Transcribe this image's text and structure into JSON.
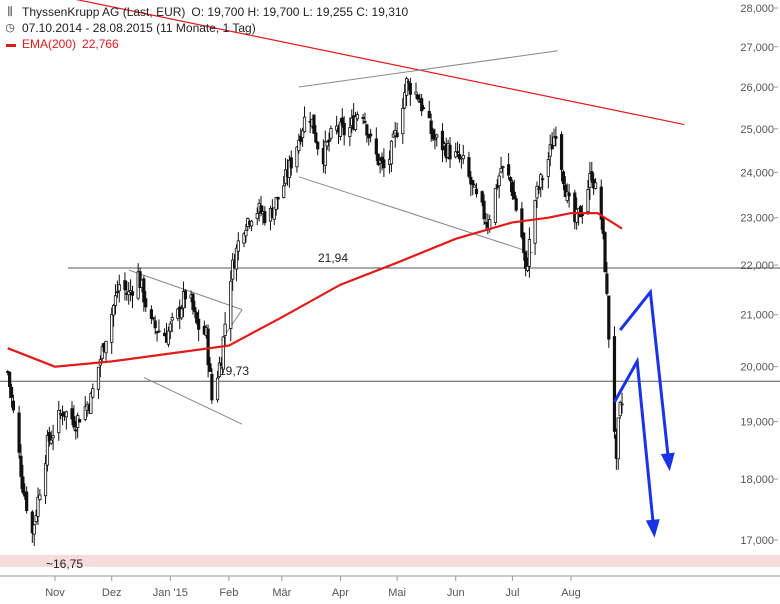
{
  "legend": {
    "title": "ThyssenKrupp AG (Last, EUR)",
    "ohlc": "O: 19,700  H: 19,700  L: 19,255  C: 19,310",
    "range": "07.10.2014 - 28.08.2015 (11 Monate, 1 Tag)",
    "ema_label": "EMA(200)",
    "ema_value": "22,766",
    "icon_chart": "candlestick-icon",
    "icon_clock": "clock-icon"
  },
  "colors": {
    "candle": "#111111",
    "ema": "#e31a1c",
    "trend_red": "#e31a1c",
    "wedge": "#888888",
    "level": "#555555",
    "arrow": "#1a33e6",
    "low_band": "#f7dcdc"
  },
  "chart_data": {
    "type": "candlestick",
    "title": "ThyssenKrupp AG (Last, EUR)",
    "xlabel": "",
    "ylabel": "",
    "ylim": [
      16.75,
      28.0
    ],
    "y_scale": "log",
    "y_ticks": [
      "17,000",
      "18,000",
      "19,000",
      "20,000",
      "21,000",
      "22,000",
      "23,000",
      "24,000",
      "25,000",
      "26,000",
      "27,000",
      "28,000"
    ],
    "y_tick_values": [
      17,
      18,
      19,
      20,
      21,
      22,
      23,
      24,
      25,
      26,
      27,
      28
    ],
    "x_labels": [
      "Nov",
      "Dez",
      "Jan '15",
      "Feb",
      "Mär",
      "Apr",
      "Mai",
      "Jun",
      "Jul",
      "Aug"
    ],
    "x_label_dates": [
      "2014-11-01",
      "2014-12-01",
      "2015-01-01",
      "2015-02-01",
      "2015-03-01",
      "2015-04-01",
      "2015-05-01",
      "2015-06-01",
      "2015-07-01",
      "2015-08-01"
    ],
    "x_range": [
      "2014-10-07",
      "2015-09-30"
    ],
    "price_path": [
      [
        "2014-10-07",
        19.9
      ],
      [
        "2014-10-15",
        17.9
      ],
      [
        "2014-10-20",
        17.1
      ],
      [
        "2014-10-28",
        18.6
      ],
      [
        "2014-11-05",
        19.2
      ],
      [
        "2014-11-12",
        19.0
      ],
      [
        "2014-11-20",
        19.4
      ],
      [
        "2014-11-28",
        20.6
      ],
      [
        "2014-12-05",
        21.6
      ],
      [
        "2014-12-10",
        21.4
      ],
      [
        "2014-12-15",
        21.8
      ],
      [
        "2014-12-22",
        20.8
      ],
      [
        "2014-12-30",
        20.6
      ],
      [
        "2015-01-05",
        21.0
      ],
      [
        "2015-01-10",
        21.5
      ],
      [
        "2015-01-15",
        20.8
      ],
      [
        "2015-01-20",
        20.6
      ],
      [
        "2015-01-23",
        19.4
      ],
      [
        "2015-01-28",
        20.2
      ],
      [
        "2015-02-02",
        21.8
      ],
      [
        "2015-02-08",
        22.8
      ],
      [
        "2015-02-15",
        23.2
      ],
      [
        "2015-02-22",
        23.0
      ],
      [
        "2015-03-01",
        23.6
      ],
      [
        "2015-03-08",
        24.5
      ],
      [
        "2015-03-15",
        25.5
      ],
      [
        "2015-03-22",
        24.3
      ],
      [
        "2015-03-29",
        25.0
      ],
      [
        "2015-04-05",
        24.9
      ],
      [
        "2015-04-12",
        25.6
      ],
      [
        "2015-04-18",
        24.5
      ],
      [
        "2015-04-25",
        24.0
      ],
      [
        "2015-05-01",
        25.0
      ],
      [
        "2015-05-06",
        26.1
      ],
      [
        "2015-05-12",
        25.8
      ],
      [
        "2015-05-20",
        24.8
      ],
      [
        "2015-05-28",
        24.5
      ],
      [
        "2015-06-05",
        24.2
      ],
      [
        "2015-06-12",
        23.4
      ],
      [
        "2015-06-18",
        22.9
      ],
      [
        "2015-06-25",
        24.1
      ],
      [
        "2015-06-30",
        23.8
      ],
      [
        "2015-07-06",
        22.6
      ],
      [
        "2015-07-08",
        21.8
      ],
      [
        "2015-07-13",
        23.4
      ],
      [
        "2015-07-20",
        24.3
      ],
      [
        "2015-07-24",
        25.0
      ],
      [
        "2015-07-30",
        23.4
      ],
      [
        "2015-08-03",
        22.9
      ],
      [
        "2015-08-07",
        23.2
      ],
      [
        "2015-08-12",
        24.0
      ],
      [
        "2015-08-17",
        23.0
      ],
      [
        "2015-08-19",
        22.0
      ],
      [
        "2015-08-21",
        20.6
      ],
      [
        "2015-08-24",
        18.9
      ],
      [
        "2015-08-25",
        18.2
      ],
      [
        "2015-08-26",
        18.9
      ],
      [
        "2015-08-27",
        19.2
      ],
      [
        "2015-08-28",
        19.31
      ]
    ],
    "ema200": [
      [
        "2014-10-07",
        20.35
      ],
      [
        "2014-11-01",
        20.0
      ],
      [
        "2014-12-01",
        20.1
      ],
      [
        "2015-01-01",
        20.25
      ],
      [
        "2015-02-01",
        20.4
      ],
      [
        "2015-03-01",
        20.95
      ],
      [
        "2015-04-01",
        21.6
      ],
      [
        "2015-05-01",
        22.05
      ],
      [
        "2015-06-01",
        22.55
      ],
      [
        "2015-07-01",
        22.9
      ],
      [
        "2015-07-20",
        23.0
      ],
      [
        "2015-08-01",
        23.1
      ],
      [
        "2015-08-15",
        23.1
      ],
      [
        "2015-08-28",
        22.766
      ]
    ],
    "levels": [
      {
        "label": "21,94",
        "value": 21.94
      },
      {
        "label": "19,73",
        "value": 19.73
      }
    ],
    "low_label": "~16,75",
    "low_value": 16.75,
    "trendline_red": [
      [
        "2014-10-07",
        28.6
      ],
      [
        "2015-09-30",
        25.1
      ]
    ],
    "wedge_upper": [
      [
        "2015-03-10",
        26.0
      ],
      [
        "2015-07-25",
        26.9
      ]
    ],
    "wedge_lower": [
      [
        "2015-03-10",
        23.9
      ],
      [
        "2015-07-12",
        22.25
      ]
    ],
    "triangle_upper": [
      [
        "2014-12-10",
        21.9
      ],
      [
        "2015-02-08",
        21.1
      ]
    ],
    "triangle_lower": [
      [
        "2014-12-18",
        19.8
      ],
      [
        "2015-02-08",
        18.95
      ]
    ],
    "triangle_left": [
      [
        "2014-12-10",
        21.9
      ],
      [
        "2014-12-18",
        19.8
      ]
    ],
    "triangle_right_up": [
      [
        "2015-01-28",
        20.5
      ],
      [
        "2015-02-08",
        21.1
      ]
    ],
    "arrows": [
      [
        [
          "2015-08-27",
          20.7
        ],
        [
          "2015-09-12",
          21.45
        ],
        [
          "2015-09-22",
          18.2
        ]
      ],
      [
        [
          "2015-08-24",
          19.35
        ],
        [
          "2015-09-05",
          20.1
        ],
        [
          "2015-09-14",
          17.1
        ]
      ]
    ]
  }
}
